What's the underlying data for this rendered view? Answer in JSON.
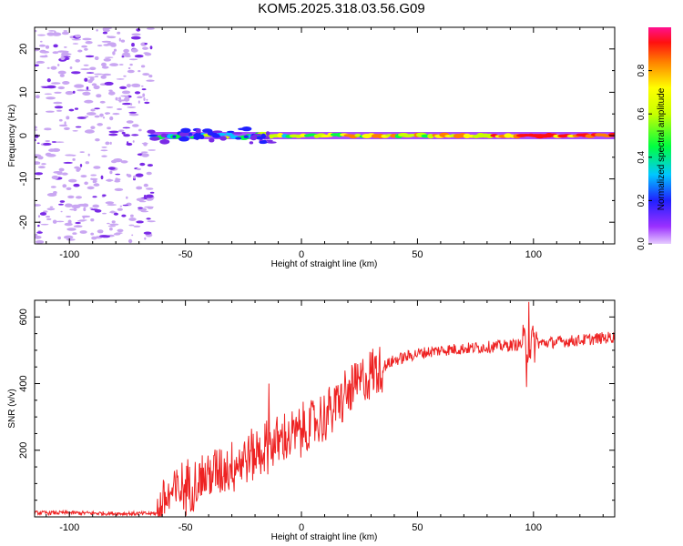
{
  "title": "KOM5.2025.318.03.56.G09",
  "colors": {
    "snr_line": "#ee2222",
    "scatter": "#7a2ae6",
    "scatter_light": "#c9a6f2",
    "axis": "#000000"
  },
  "chart_data": [
    {
      "type": "heatmap",
      "title": "KOM5.2025.318.03.56.G09",
      "xlabel": "Height of straight line (km)",
      "ylabel": "Frequency (Hz)",
      "xlim": [
        -115,
        135
      ],
      "ylim": [
        -25,
        25
      ],
      "xticks": [
        -100,
        -50,
        0,
        50,
        100
      ],
      "yticks": [
        -20,
        -10,
        0,
        10,
        20
      ],
      "signal_onset_km": -65,
      "signal_frequency_hz": 0,
      "colorbar": {
        "label": "Normalized spectral amplitude",
        "range": [
          0,
          1
        ],
        "ticks": [
          0.0,
          0.2,
          0.4,
          0.6,
          0.8
        ],
        "tick_labels": [
          "0.0",
          "0.2",
          "0.4",
          "0.6",
          "0.8"
        ],
        "colormap": "rainbow (violet → blue → cyan → green → yellow → orange → red → pink)"
      }
    },
    {
      "type": "line",
      "xlabel": "Height of straight line (km)",
      "ylabel": "SNR (v/v)",
      "xlim": [
        -115,
        135
      ],
      "ylim": [
        0,
        650
      ],
      "xticks": [
        -100,
        -50,
        0,
        50,
        100
      ],
      "yticks": [
        200,
        400,
        600
      ],
      "trend": [
        {
          "x": -115,
          "y": 12
        },
        {
          "x": -100,
          "y": 12
        },
        {
          "x": -80,
          "y": 10
        },
        {
          "x": -62,
          "y": 10
        },
        {
          "x": -58,
          "y": 60
        },
        {
          "x": -50,
          "y": 90
        },
        {
          "x": -40,
          "y": 125
        },
        {
          "x": -30,
          "y": 155
        },
        {
          "x": -20,
          "y": 190
        },
        {
          "x": -10,
          "y": 225
        },
        {
          "x": 0,
          "y": 255
        },
        {
          "x": 10,
          "y": 300
        },
        {
          "x": 20,
          "y": 370
        },
        {
          "x": 30,
          "y": 430
        },
        {
          "x": 40,
          "y": 470
        },
        {
          "x": 50,
          "y": 490
        },
        {
          "x": 60,
          "y": 500
        },
        {
          "x": 80,
          "y": 510
        },
        {
          "x": 100,
          "y": 520
        },
        {
          "x": 120,
          "y": 530
        },
        {
          "x": 135,
          "y": 540
        }
      ],
      "spikes": [
        {
          "x": -14,
          "y": 400
        },
        {
          "x": 98,
          "y": 645
        },
        {
          "x": 97,
          "y": 390
        }
      ]
    }
  ]
}
